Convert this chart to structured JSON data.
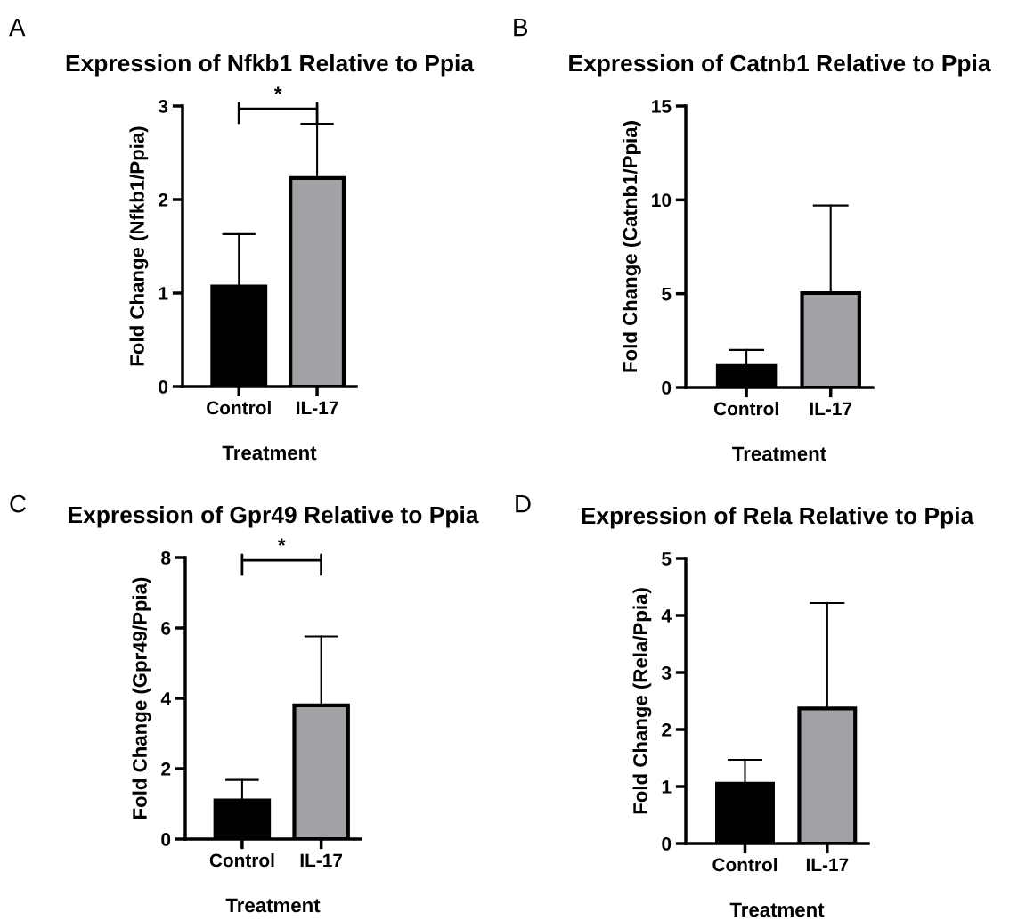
{
  "chart_data": [
    {
      "type": "bar",
      "title": "Expression of Nfkb1 Relative to Ppia",
      "xlabel": "Treatment",
      "ylabel": "Fold Change (Nfkb1/Ppia)",
      "categories": [
        "Control",
        "IL-17"
      ],
      "values": [
        1.07,
        2.23
      ],
      "colors": [
        "#000000",
        "#a2a1a6"
      ],
      "errors": [
        [
          1.07,
          1.63
        ],
        [
          2.23,
          2.81
        ]
      ],
      "ylim": [
        0,
        3
      ],
      "yticks": [
        0,
        1,
        2,
        3
      ],
      "annotations": [
        "A",
        "*"
      ]
    },
    {
      "type": "bar",
      "title": "Expression of Catnb1 Relative to Ppia",
      "xlabel": "Treatment",
      "ylabel": "Fold Change (Catnb1/Ppia)",
      "categories": [
        "Control",
        "IL-17"
      ],
      "values": [
        1.15,
        5.03
      ],
      "colors": [
        "#000000",
        "#a2a1a6"
      ],
      "errors": [
        [
          1.15,
          2.0
        ],
        [
          5.03,
          9.7
        ]
      ],
      "ylim": [
        0,
        15
      ],
      "yticks": [
        0,
        5,
        10,
        15
      ],
      "annotations": [
        "B"
      ]
    },
    {
      "type": "bar",
      "title": "Expression of Gpr49 Relative to Ppia",
      "xlabel": "Treatment",
      "ylabel": "Fold Change (Gpr49/Ppia)",
      "categories": [
        "Control",
        "IL-17"
      ],
      "values": [
        1.1,
        3.8
      ],
      "colors": [
        "#000000",
        "#a2a1a6"
      ],
      "errors": [
        [
          1.1,
          1.68
        ],
        [
          3.8,
          5.76
        ]
      ],
      "ylim": [
        0,
        8
      ],
      "yticks": [
        0,
        2,
        4,
        6,
        8
      ],
      "annotations": [
        "C",
        "*"
      ]
    },
    {
      "type": "bar",
      "title": "Expression of Rela Relative to Ppia",
      "xlabel": "Treatment",
      "ylabel": "Fold Change (Rela/Ppia)",
      "categories": [
        "Control",
        "IL-17"
      ],
      "values": [
        1.05,
        2.37
      ],
      "colors": [
        "#000000",
        "#a2a1a6"
      ],
      "errors": [
        [
          1.05,
          1.47
        ],
        [
          2.37,
          4.22
        ]
      ],
      "ylim": [
        0,
        5
      ],
      "yticks": [
        0,
        1,
        2,
        3,
        4,
        5
      ],
      "annotations": [
        "D"
      ]
    }
  ]
}
